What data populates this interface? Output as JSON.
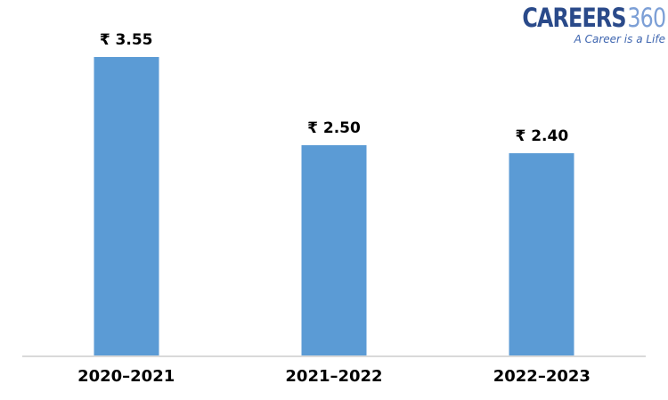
{
  "logo": {
    "brand": "CAREERS",
    "suffix": "360",
    "tagline": "A Career is a Life",
    "brand_color": "#2A4A8A",
    "suffix_color": "#7C9FD6",
    "tagline_color": "#3F66B0"
  },
  "chart_data": {
    "type": "bar",
    "categories": [
      "2020–2021",
      "2021–2022",
      "2022–2023"
    ],
    "values": [
      3.55,
      2.5,
      2.4
    ],
    "value_labels": [
      "₹ 3.55",
      "₹ 2.50",
      "₹ 2.40"
    ],
    "title": "",
    "xlabel": "",
    "ylabel": "",
    "ylim": [
      0,
      4
    ],
    "grid": false,
    "legend": false,
    "bar_color": "#5B9BD5",
    "axis_line_color": "#D9D9D9",
    "label_color": "#000000"
  }
}
